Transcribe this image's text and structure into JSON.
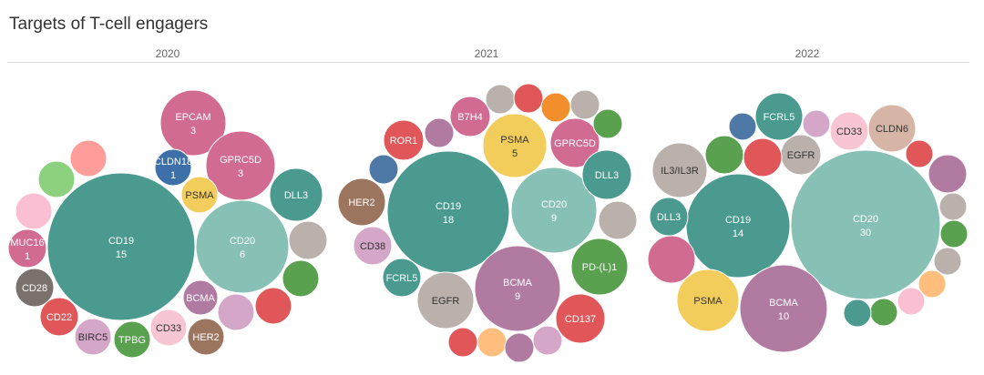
{
  "title": "Targets of T-cell engagers",
  "chart_data": {
    "type": "bubble",
    "title": "Targets of T-cell engagers",
    "panels": [
      {
        "year": "2020",
        "bubbles": [
          {
            "label": "CD19",
            "value": "15",
            "color": "#4a9a8f"
          },
          {
            "label": "CD20",
            "value": "6",
            "color": "#87c0b5"
          },
          {
            "label": "EPCAM",
            "value": "3",
            "color": "#d16b91"
          },
          {
            "label": "GPRC5D",
            "value": "3",
            "color": "#d16b91"
          },
          {
            "label": "CLDN18",
            "value": "1",
            "color": "#3d6fa8"
          },
          {
            "label": "PSMA",
            "value": "",
            "color": "#f2cd5c"
          },
          {
            "label": "DLL3",
            "value": "",
            "color": "#4a9a8f"
          },
          {
            "label": "MUC16",
            "value": "1",
            "color": "#d16b91"
          },
          {
            "label": "CD28",
            "value": "",
            "color": "#7a716c"
          },
          {
            "label": "CD22",
            "value": "",
            "color": "#e15759"
          },
          {
            "label": "BIRC5",
            "value": "",
            "color": "#d4a6c8"
          },
          {
            "label": "TPBG",
            "value": "",
            "color": "#59a14f"
          },
          {
            "label": "CD33",
            "value": "",
            "color": "#f7c6d2"
          },
          {
            "label": "HER2",
            "value": "",
            "color": "#9c755f"
          },
          {
            "label": "BCMA",
            "value": "",
            "color": "#b07aa1"
          },
          {
            "label": "",
            "value": "",
            "color": "#ff9d9a"
          },
          {
            "label": "",
            "value": "",
            "color": "#8cd17d"
          },
          {
            "label": "",
            "value": "",
            "color": "#fabfd2"
          },
          {
            "label": "",
            "value": "",
            "color": "#bab0ac"
          },
          {
            "label": "",
            "value": "",
            "color": "#59a14f"
          },
          {
            "label": "",
            "value": "",
            "color": "#e15759"
          },
          {
            "label": "",
            "value": "",
            "color": "#d4a6c8"
          }
        ]
      },
      {
        "year": "2021",
        "bubbles": [
          {
            "label": "CD19",
            "value": "18",
            "color": "#4a9a8f"
          },
          {
            "label": "CD20",
            "value": "9",
            "color": "#87c0b5"
          },
          {
            "label": "BCMA",
            "value": "9",
            "color": "#b07aa1"
          },
          {
            "label": "PSMA",
            "value": "5",
            "color": "#f2cd5c"
          },
          {
            "label": "GPRC5D",
            "value": "",
            "color": "#d16b91"
          },
          {
            "label": "DLL3",
            "value": "",
            "color": "#4a9a8f"
          },
          {
            "label": "B7H4",
            "value": "",
            "color": "#d16b91"
          },
          {
            "label": "ROR1",
            "value": "",
            "color": "#e15759"
          },
          {
            "label": "HER2",
            "value": "",
            "color": "#9c755f"
          },
          {
            "label": "CD38",
            "value": "",
            "color": "#d4a6c8"
          },
          {
            "label": "FCRL5",
            "value": "",
            "color": "#4a9a8f"
          },
          {
            "label": "EGFR",
            "value": "",
            "color": "#bab0ac"
          },
          {
            "label": "PD-(L)1",
            "value": "",
            "color": "#59a14f"
          },
          {
            "label": "CD137",
            "value": "",
            "color": "#e15759"
          },
          {
            "label": "",
            "value": "",
            "color": "#bab0ac"
          },
          {
            "label": "",
            "value": "",
            "color": "#e15759"
          },
          {
            "label": "",
            "value": "",
            "color": "#f28e2b"
          },
          {
            "label": "",
            "value": "",
            "color": "#bab0ac"
          },
          {
            "label": "",
            "value": "",
            "color": "#59a14f"
          },
          {
            "label": "",
            "value": "",
            "color": "#b07aa1"
          },
          {
            "label": "",
            "value": "",
            "color": "#4e79a7"
          },
          {
            "label": "",
            "value": "",
            "color": "#bab0ac"
          },
          {
            "label": "",
            "value": "",
            "color": "#e15759"
          },
          {
            "label": "",
            "value": "",
            "color": "#ffbe7d"
          },
          {
            "label": "",
            "value": "",
            "color": "#b07aa1"
          },
          {
            "label": "",
            "value": "",
            "color": "#d4a6c8"
          }
        ]
      },
      {
        "year": "2022",
        "bubbles": [
          {
            "label": "CD20",
            "value": "30",
            "color": "#87c0b5"
          },
          {
            "label": "CD19",
            "value": "14",
            "color": "#4a9a8f"
          },
          {
            "label": "BCMA",
            "value": "10",
            "color": "#b07aa1"
          },
          {
            "label": "PSMA",
            "value": "",
            "color": "#f2cd5c"
          },
          {
            "label": "IL3/IL3R",
            "value": "",
            "color": "#bab0ac"
          },
          {
            "label": "FCRL5",
            "value": "",
            "color": "#4a9a8f"
          },
          {
            "label": "EGFR",
            "value": "",
            "color": "#bab0ac"
          },
          {
            "label": "CD33",
            "value": "",
            "color": "#f7c6d2"
          },
          {
            "label": "CLDN6",
            "value": "",
            "color": "#d7b5a6"
          },
          {
            "label": "DLL3",
            "value": "",
            "color": "#4a9a8f"
          },
          {
            "label": "",
            "value": "",
            "color": "#4e79a7"
          },
          {
            "label": "",
            "value": "",
            "color": "#59a14f"
          },
          {
            "label": "",
            "value": "",
            "color": "#e15759"
          },
          {
            "label": "",
            "value": "",
            "color": "#d4a6c8"
          },
          {
            "label": "",
            "value": "",
            "color": "#e15759"
          },
          {
            "label": "",
            "value": "",
            "color": "#b07aa1"
          },
          {
            "label": "",
            "value": "",
            "color": "#bab0ac"
          },
          {
            "label": "",
            "value": "",
            "color": "#59a14f"
          },
          {
            "label": "",
            "value": "",
            "color": "#bab0ac"
          },
          {
            "label": "",
            "value": "",
            "color": "#ffbe7d"
          },
          {
            "label": "",
            "value": "",
            "color": "#fabfd2"
          },
          {
            "label": "",
            "value": "",
            "color": "#59a14f"
          },
          {
            "label": "",
            "value": "",
            "color": "#4a9a8f"
          },
          {
            "label": "",
            "value": "",
            "color": "#d16b91"
          }
        ]
      }
    ]
  }
}
